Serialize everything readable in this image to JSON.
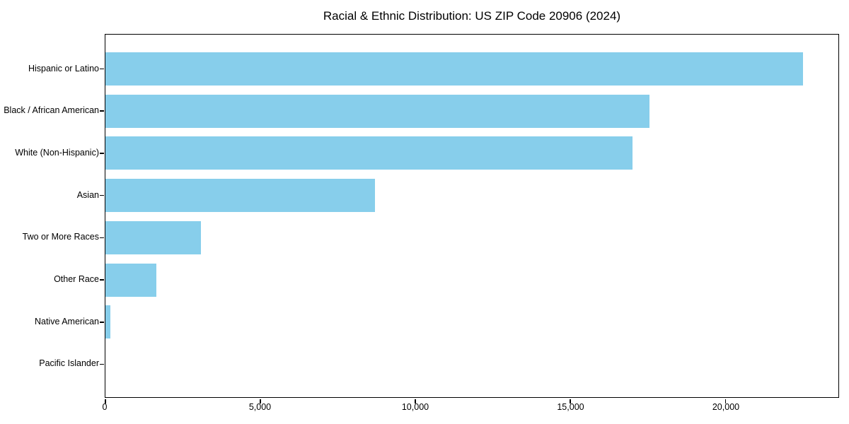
{
  "title": "Racial & Ethnic Distribution: US ZIP Code 20906 (2024)",
  "colors": {
    "bar": "#87CEEB",
    "axis": "#000000",
    "background": "#FFFFFF",
    "text": "#000000"
  },
  "chart_data": {
    "type": "bar",
    "orientation": "horizontal",
    "title": "Racial & Ethnic Distribution: US ZIP Code 20906 (2024)",
    "categories": [
      "Hispanic or Latino",
      "Black / African American",
      "White (Non-Hispanic)",
      "Asian",
      "Two or More Races",
      "Other Race",
      "Native American",
      "Pacific Islander"
    ],
    "values": [
      22500,
      17560,
      17000,
      8700,
      3075,
      1640,
      160,
      0
    ],
    "bar_color": "#87CEEB",
    "xlabel": "",
    "ylabel": "",
    "xlim": [
      0,
      23645
    ],
    "xticks": [
      {
        "value": 0,
        "label": "0"
      },
      {
        "value": 5000,
        "label": "5,000"
      },
      {
        "value": 10000,
        "label": "10,000"
      },
      {
        "value": 15000,
        "label": "15,000"
      },
      {
        "value": 20000,
        "label": "20,000"
      }
    ],
    "grid": false,
    "legend": false,
    "categories_order": "top-to-bottom"
  }
}
